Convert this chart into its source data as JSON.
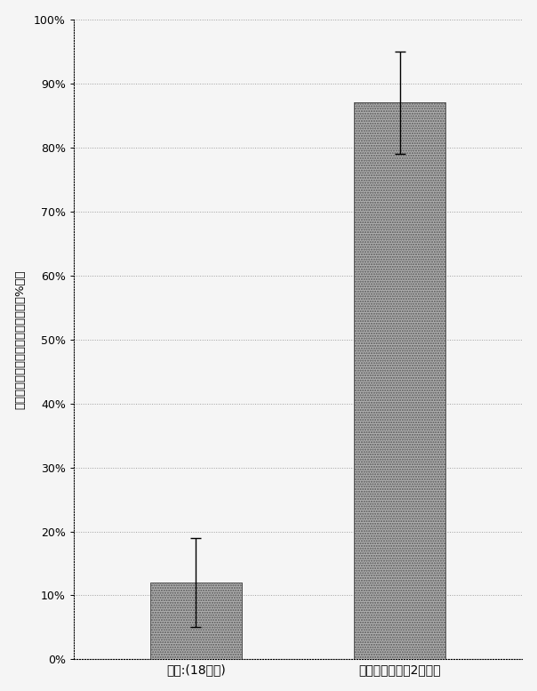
{
  "categories": [
    "静置:(18時間)",
    "バイオチップ（2時間）"
  ],
  "values": [
    12,
    87
  ],
  "errors": [
    7,
    8
  ],
  "bar_color": "#b0b0b0",
  "ylim": [
    0,
    100
  ],
  "yticks": [
    0,
    10,
    20,
    30,
    40,
    50,
    60,
    70,
    80,
    90,
    100
  ],
  "ytick_labels": [
    "0%",
    "10%",
    "20%",
    "30%",
    "40%",
    "50%",
    "60%",
    "70%",
    "80%",
    "90%",
    "100%"
  ],
  "ylabel": "血小板前駆細胞産生巨核球の割合（%）：",
  "background_color": "#f5f5f5",
  "bar_width": 0.45,
  "tick_fontsize": 9,
  "xlabel_fontsize": 10
}
